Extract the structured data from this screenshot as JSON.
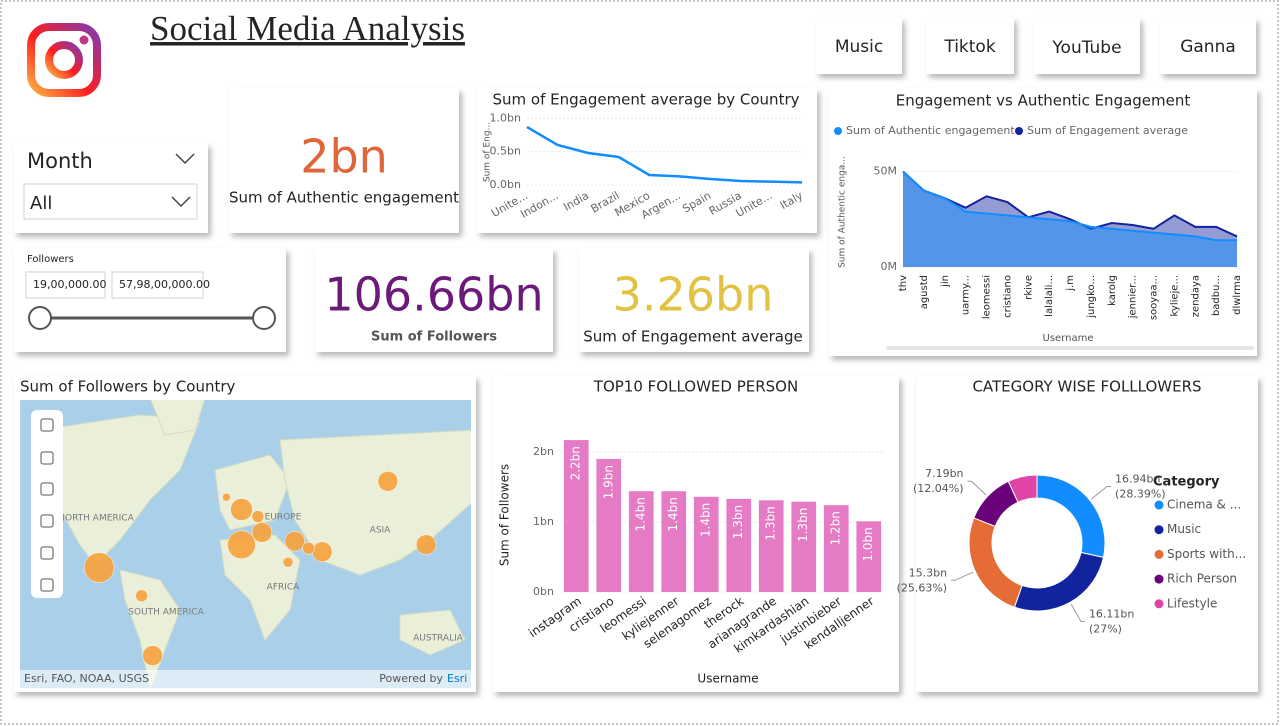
{
  "header": {
    "title": "Social Media Analysis"
  },
  "nav_buttons": [
    "Music",
    "Tiktok",
    "YouTube",
    "Ganna"
  ],
  "month_slicer": {
    "title": "Month",
    "value": "All"
  },
  "followers_slicer": {
    "title": "Followers",
    "min_label": "19,00,000.00",
    "max_label": "57,98,00,000.00"
  },
  "cards": [
    {
      "value": "2bn",
      "label": "Sum of Authentic engagement",
      "color": "#e0663a"
    },
    {
      "value": "106.66bn",
      "label": "Sum of Followers",
      "color": "#6b1a7a"
    },
    {
      "value": "3.26bn",
      "label": "Sum of Engagement average",
      "color": "#e1c341"
    }
  ],
  "chart_data": [
    {
      "type": "line",
      "title": "Sum of Engagement average by Country",
      "y_label": "Sum of Eng...",
      "categories": [
        "Unite...",
        "Indon...",
        "India",
        "Brazil",
        "Mexico",
        "Argen...",
        "Spain",
        "Russia",
        "Unite...",
        "Italy"
      ],
      "values": [
        0.87,
        0.6,
        0.48,
        0.42,
        0.15,
        0.13,
        0.09,
        0.06,
        0.05,
        0.04
      ],
      "color": "#118dff",
      "ylim": [
        0,
        1.05
      ],
      "yticks": [
        {
          "value": 0,
          "label": "0.0bn"
        },
        {
          "value": 0.5,
          "label": "0.5bn"
        },
        {
          "value": 1,
          "label": "1.0bn"
        }
      ],
      "grid": true
    },
    {
      "type": "area",
      "title": "Engagement vs Authentic Engagement",
      "y_label": "Sum of Authentic enga...",
      "x_label": "Username",
      "categories": [
        "thv",
        "agustd",
        "jin",
        "uarmy...",
        "leomessi",
        "cristiano",
        "rkive",
        "lalalali...",
        "j.m",
        "jungko...",
        "karolg",
        "jennier...",
        "sooyaa...",
        "kylieje...",
        "zendaya",
        "badbu...",
        "dlwlrma"
      ],
      "series": [
        {
          "name": "Sum of Authentic engagement",
          "color": "#118dff",
          "values": [
            50,
            40,
            36,
            29,
            28,
            27,
            26,
            25,
            24,
            21,
            20,
            19,
            18,
            17,
            16,
            14,
            14
          ]
        },
        {
          "name": "Sum of Engagement average",
          "color": "#12239e",
          "values": [
            50,
            40,
            36,
            31,
            37,
            34,
            26,
            29,
            25,
            20,
            23,
            22,
            20,
            27,
            21,
            21,
            16
          ]
        }
      ],
      "ylim": [
        0,
        56
      ],
      "yticks": [
        {
          "value": 0,
          "label": "0M"
        },
        {
          "value": 50,
          "label": "50M"
        }
      ],
      "grid": true
    },
    {
      "type": "bar",
      "title": "TOP10 FOLLOWED PERSON",
      "y_label": "Sum of Followers",
      "x_label": "Username",
      "categories": [
        "instagram",
        "cristiano",
        "leomessi",
        "kyliejenner",
        "selenagomez",
        "therock",
        "arianagrande",
        "kimkardashian",
        "justinbieber",
        "kendalljenner"
      ],
      "values": [
        2.17,
        1.9,
        1.44,
        1.44,
        1.36,
        1.33,
        1.31,
        1.29,
        1.24,
        1.01
      ],
      "value_labels": [
        "2.2bn",
        "1.9bn",
        "1.4bn",
        "1.4bn",
        "1.4bn",
        "1.3bn",
        "1.3bn",
        "1.3bn",
        "1.2bn",
        "1.0bn"
      ],
      "color": "#e57bc4",
      "ylim": [
        0,
        2.25
      ],
      "yticks": [
        {
          "value": 0,
          "label": "0bn"
        },
        {
          "value": 1,
          "label": "1bn"
        },
        {
          "value": 2,
          "label": "2bn"
        }
      ],
      "grid": true
    },
    {
      "type": "donut",
      "title": "CATEGORY WISE FOLLLOWERS",
      "legend_title": "Category",
      "categories": [
        "Cinema & ...",
        "Music",
        "Sports with...",
        "Rich Person",
        "Lifestyle"
      ],
      "values": [
        16.94,
        16.11,
        15.3,
        7.19,
        4.14
      ],
      "value_labels": [
        "16.94bn",
        "16.11bn",
        "15.3bn",
        "7.19bn",
        null
      ],
      "percent_labels": [
        "(28.39%)",
        "(27%)",
        "(25.63%)",
        "(12.04%)",
        null
      ],
      "colors": [
        "#118dff",
        "#12239e",
        "#e66c37",
        "#6b007b",
        "#e044a7"
      ],
      "legend": "right"
    },
    {
      "type": "map",
      "title": "Sum of Followers by Country",
      "color": "#f7a13b",
      "region_labels": [
        "NORTH AMERICA",
        "EUROPE",
        "ASIA",
        "AFRICA",
        "SOUTH AMERICA",
        "AUSTRALIA"
      ],
      "attribution": "Esri, FAO, NOAA, USGS",
      "powered_by": "Powered by",
      "powered_by_link": "Esri",
      "points": {
        "lon": [
          -100,
          -69,
          -61,
          4,
          4,
          19,
          16,
          43,
          63,
          53,
          111,
          139,
          38,
          -7
        ],
        "lat": [
          15,
          -1,
          -35,
          48,
          28,
          35,
          44,
          30,
          24,
          26,
          64,
          28,
          18,
          55
        ],
        "size": [
          14,
          2.3,
          6.2,
          7.6,
          12.3,
          6.2,
          2.3,
          6.2,
          6.2,
          2.3,
          6.2,
          6.2,
          1.6,
          1
        ]
      }
    }
  ]
}
